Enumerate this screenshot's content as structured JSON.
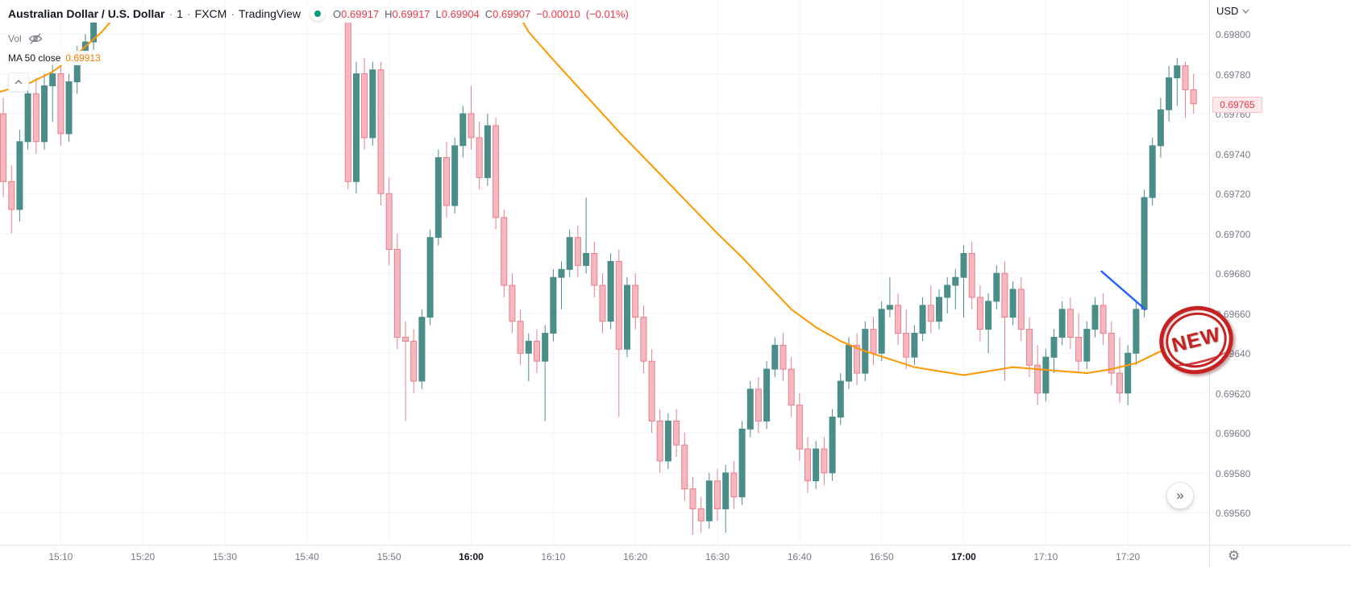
{
  "header": {
    "symbol_title": "Australian Dollar / U.S. Dollar",
    "separator": "·",
    "interval": "1",
    "exchange": "FXCM",
    "platform": "TradingView",
    "ohlc": {
      "o_label": "O",
      "o": "0.69917",
      "h_label": "H",
      "h": "0.69917",
      "l_label": "L",
      "l": "0.69904",
      "c_label": "C",
      "c": "0.69907",
      "change": "−0.00010",
      "change_pct": "(−0.01%)"
    },
    "vol_label": "Vol",
    "ma_label": "MA 50 close",
    "ma_value": "0.69913"
  },
  "price_axis": {
    "currency": "USD",
    "last_price": "0.69765"
  },
  "buttons": {
    "scroll_to_recent": "»",
    "settings_icon": "⚙"
  },
  "colors": {
    "up": "#4a8d89",
    "down_body": "#f5b8c1",
    "down_border": "#ea7f8b",
    "ma": "#ff9800",
    "trendline": "#2962ff",
    "grid": "#f0f3fa",
    "axis_text": "#787b86",
    "red": "#f23645",
    "stamp": "#c62222"
  },
  "chart_data": {
    "type": "candlestick",
    "title": "Australian Dollar / U.S. Dollar, 1, FXCM",
    "time_base": "15:00",
    "visible_range": {
      "time_min": 2.6,
      "time_max": 149.9,
      "price_min": 0.69544,
      "price_max": 0.69817
    },
    "price_ticks": [
      {
        "label": "0.69800",
        "price": 0.698
      },
      {
        "label": "0.69780",
        "price": 0.6978
      },
      {
        "label": "0.69760",
        "price": 0.6976
      },
      {
        "label": "0.69740",
        "price": 0.6974
      },
      {
        "label": "0.69720",
        "price": 0.6972
      },
      {
        "label": "0.69700",
        "price": 0.697
      },
      {
        "label": "0.69680",
        "price": 0.6968
      },
      {
        "label": "0.69660",
        "price": 0.6966
      },
      {
        "label": "0.69640",
        "price": 0.6964
      },
      {
        "label": "0.69620",
        "price": 0.6962
      },
      {
        "label": "0.69600",
        "price": 0.696
      },
      {
        "label": "0.69580",
        "price": 0.6958
      },
      {
        "label": "0.69560",
        "price": 0.6956
      }
    ],
    "time_ticks": [
      {
        "label": "15:10",
        "minute": 10,
        "bold": false
      },
      {
        "label": "15:20",
        "minute": 20,
        "bold": false
      },
      {
        "label": "15:30",
        "minute": 30,
        "bold": false
      },
      {
        "label": "15:40",
        "minute": 40,
        "bold": false
      },
      {
        "label": "15:50",
        "minute": 50,
        "bold": false
      },
      {
        "label": "16:00",
        "minute": 60,
        "bold": true
      },
      {
        "label": "16:10",
        "minute": 70,
        "bold": false
      },
      {
        "label": "16:20",
        "minute": 80,
        "bold": false
      },
      {
        "label": "16:30",
        "minute": 90,
        "bold": false
      },
      {
        "label": "16:40",
        "minute": 100,
        "bold": false
      },
      {
        "label": "16:50",
        "minute": 110,
        "bold": false
      },
      {
        "label": "17:00",
        "minute": 120,
        "bold": true
      },
      {
        "label": "17:10",
        "minute": 130,
        "bold": false
      },
      {
        "label": "17:20",
        "minute": 140,
        "bold": false
      }
    ],
    "candles": [
      [
        3,
        0.6976,
        0.69768,
        0.69718,
        0.69726
      ],
      [
        4,
        0.69726,
        0.69734,
        0.697,
        0.69712
      ],
      [
        5,
        0.69712,
        0.69752,
        0.69706,
        0.69746
      ],
      [
        6,
        0.69746,
        0.69776,
        0.69742,
        0.6977
      ],
      [
        7,
        0.6977,
        0.69778,
        0.6974,
        0.69746
      ],
      [
        8,
        0.69746,
        0.6978,
        0.69742,
        0.69774
      ],
      [
        9,
        0.69774,
        0.69786,
        0.69756,
        0.6978
      ],
      [
        10,
        0.6978,
        0.69784,
        0.69744,
        0.6975
      ],
      [
        11,
        0.6975,
        0.6978,
        0.69746,
        0.69776
      ],
      [
        12,
        0.69776,
        0.69794,
        0.6977,
        0.6979
      ],
      [
        13,
        0.6979,
        0.698,
        0.69786,
        0.69796
      ],
      [
        14,
        0.69796,
        0.69808,
        0.69792,
        0.69806
      ],
      [
        45,
        0.69806,
        0.6981,
        0.69722,
        0.69726
      ],
      [
        46,
        0.69726,
        0.69786,
        0.6972,
        0.6978
      ],
      [
        47,
        0.6978,
        0.69788,
        0.69742,
        0.69748
      ],
      [
        48,
        0.69748,
        0.69786,
        0.69744,
        0.69782
      ],
      [
        49,
        0.69782,
        0.69786,
        0.69714,
        0.6972
      ],
      [
        50,
        0.6972,
        0.69728,
        0.69684,
        0.69692
      ],
      [
        51,
        0.69692,
        0.697,
        0.69642,
        0.69648
      ],
      [
        52,
        0.69648,
        0.69656,
        0.69606,
        0.69646
      ],
      [
        53,
        0.69646,
        0.69652,
        0.6962,
        0.69626
      ],
      [
        54,
        0.69626,
        0.69662,
        0.69622,
        0.69658
      ],
      [
        55,
        0.69658,
        0.69702,
        0.69654,
        0.69698
      ],
      [
        56,
        0.69698,
        0.69742,
        0.69694,
        0.69738
      ],
      [
        57,
        0.69738,
        0.69746,
        0.69708,
        0.69714
      ],
      [
        58,
        0.69714,
        0.69748,
        0.6971,
        0.69744
      ],
      [
        59,
        0.69744,
        0.69764,
        0.69738,
        0.6976
      ],
      [
        60,
        0.6976,
        0.69774,
        0.69742,
        0.69748
      ],
      [
        61,
        0.69748,
        0.69756,
        0.69722,
        0.69728
      ],
      [
        62,
        0.69728,
        0.6976,
        0.69724,
        0.69754
      ],
      [
        63,
        0.69754,
        0.69758,
        0.69702,
        0.69708
      ],
      [
        64,
        0.69708,
        0.69712,
        0.69668,
        0.69674
      ],
      [
        65,
        0.69674,
        0.6968,
        0.6965,
        0.69656
      ],
      [
        66,
        0.69656,
        0.69662,
        0.69634,
        0.6964
      ],
      [
        67,
        0.6964,
        0.6965,
        0.69626,
        0.69646
      ],
      [
        68,
        0.69646,
        0.69652,
        0.6963,
        0.69636
      ],
      [
        69,
        0.69636,
        0.69654,
        0.69606,
        0.6965
      ],
      [
        70,
        0.6965,
        0.69682,
        0.69646,
        0.69678
      ],
      [
        71,
        0.69678,
        0.69686,
        0.69662,
        0.69682
      ],
      [
        72,
        0.69682,
        0.69702,
        0.69678,
        0.69698
      ],
      [
        73,
        0.69698,
        0.69704,
        0.69678,
        0.69684
      ],
      [
        74,
        0.69684,
        0.69718,
        0.6968,
        0.6969
      ],
      [
        75,
        0.6969,
        0.69696,
        0.69668,
        0.69674
      ],
      [
        76,
        0.69674,
        0.6968,
        0.6965,
        0.69656
      ],
      [
        77,
        0.69656,
        0.6969,
        0.69652,
        0.69686
      ],
      [
        78,
        0.69686,
        0.69692,
        0.69608,
        0.69642
      ],
      [
        79,
        0.69642,
        0.69678,
        0.69638,
        0.69674
      ],
      [
        80,
        0.69674,
        0.6968,
        0.69652,
        0.69658
      ],
      [
        81,
        0.69658,
        0.69664,
        0.6963,
        0.69636
      ],
      [
        82,
        0.69636,
        0.69642,
        0.696,
        0.69606
      ],
      [
        83,
        0.69606,
        0.69612,
        0.6958,
        0.69586
      ],
      [
        84,
        0.69586,
        0.6961,
        0.69582,
        0.69606
      ],
      [
        85,
        0.69606,
        0.69612,
        0.69588,
        0.69594
      ],
      [
        86,
        0.69594,
        0.696,
        0.69566,
        0.69572
      ],
      [
        87,
        0.69572,
        0.69578,
        0.69549,
        0.69562
      ],
      [
        88,
        0.69562,
        0.69568,
        0.6955,
        0.69556
      ],
      [
        89,
        0.69556,
        0.6958,
        0.69552,
        0.69576
      ],
      [
        90,
        0.69576,
        0.69582,
        0.69556,
        0.69562
      ],
      [
        91,
        0.69562,
        0.69584,
        0.6955,
        0.6958
      ],
      [
        92,
        0.6958,
        0.69586,
        0.69562,
        0.69568
      ],
      [
        93,
        0.69568,
        0.69606,
        0.69564,
        0.69602
      ],
      [
        94,
        0.69602,
        0.69626,
        0.69598,
        0.69622
      ],
      [
        95,
        0.69622,
        0.69628,
        0.696,
        0.69606
      ],
      [
        96,
        0.69606,
        0.69636,
        0.69602,
        0.69632
      ],
      [
        97,
        0.69632,
        0.69648,
        0.69628,
        0.69644
      ],
      [
        98,
        0.69644,
        0.6965,
        0.69626,
        0.69632
      ],
      [
        99,
        0.69632,
        0.69638,
        0.69608,
        0.69614
      ],
      [
        100,
        0.69614,
        0.6962,
        0.69586,
        0.69592
      ],
      [
        101,
        0.69592,
        0.69598,
        0.6957,
        0.69576
      ],
      [
        102,
        0.69576,
        0.69596,
        0.69572,
        0.69592
      ],
      [
        103,
        0.69592,
        0.69598,
        0.69574,
        0.6958
      ],
      [
        104,
        0.6958,
        0.69612,
        0.69576,
        0.69608
      ],
      [
        105,
        0.69608,
        0.6963,
        0.69604,
        0.69626
      ],
      [
        106,
        0.69626,
        0.69648,
        0.69622,
        0.69644
      ],
      [
        107,
        0.69644,
        0.6965,
        0.69624,
        0.6963
      ],
      [
        108,
        0.6963,
        0.69656,
        0.69626,
        0.69652
      ],
      [
        109,
        0.69652,
        0.69658,
        0.69634,
        0.6964
      ],
      [
        110,
        0.6964,
        0.69666,
        0.69636,
        0.69662
      ],
      [
        111,
        0.69662,
        0.69678,
        0.69658,
        0.69664
      ],
      [
        112,
        0.69664,
        0.6967,
        0.69644,
        0.6965
      ],
      [
        113,
        0.6965,
        0.69662,
        0.69632,
        0.69638
      ],
      [
        114,
        0.69638,
        0.69654,
        0.69634,
        0.6965
      ],
      [
        115,
        0.6965,
        0.69668,
        0.69646,
        0.69664
      ],
      [
        116,
        0.69664,
        0.69674,
        0.6965,
        0.69656
      ],
      [
        117,
        0.69656,
        0.69672,
        0.69652,
        0.69668
      ],
      [
        118,
        0.69668,
        0.69678,
        0.6966,
        0.69674
      ],
      [
        119,
        0.69674,
        0.69682,
        0.69662,
        0.69678
      ],
      [
        120,
        0.69678,
        0.69694,
        0.69658,
        0.6969
      ],
      [
        121,
        0.6969,
        0.69696,
        0.69662,
        0.69668
      ],
      [
        122,
        0.69668,
        0.69674,
        0.69646,
        0.69652
      ],
      [
        123,
        0.69652,
        0.6967,
        0.6964,
        0.69666
      ],
      [
        124,
        0.69666,
        0.69684,
        0.69662,
        0.6968
      ],
      [
        125,
        0.6968,
        0.69686,
        0.69626,
        0.69658
      ],
      [
        126,
        0.69658,
        0.69676,
        0.69654,
        0.69672
      ],
      [
        127,
        0.69672,
        0.69678,
        0.69646,
        0.69652
      ],
      [
        128,
        0.69652,
        0.69658,
        0.69628,
        0.69634
      ],
      [
        129,
        0.69634,
        0.69644,
        0.69614,
        0.6962
      ],
      [
        130,
        0.6962,
        0.69642,
        0.69616,
        0.69638
      ],
      [
        131,
        0.69638,
        0.69652,
        0.6963,
        0.69648
      ],
      [
        132,
        0.69648,
        0.69666,
        0.69644,
        0.69662
      ],
      [
        133,
        0.69662,
        0.69668,
        0.69642,
        0.69648
      ],
      [
        134,
        0.69648,
        0.6966,
        0.6963,
        0.69636
      ],
      [
        135,
        0.69636,
        0.69656,
        0.69632,
        0.69652
      ],
      [
        136,
        0.69652,
        0.69668,
        0.69648,
        0.69664
      ],
      [
        137,
        0.69664,
        0.6967,
        0.69644,
        0.6965
      ],
      [
        138,
        0.6965,
        0.69656,
        0.69624,
        0.6963
      ],
      [
        139,
        0.6963,
        0.69648,
        0.69615,
        0.6962
      ],
      [
        140,
        0.6962,
        0.69644,
        0.69614,
        0.6964
      ],
      [
        141,
        0.6964,
        0.69666,
        0.69634,
        0.69662
      ],
      [
        142,
        0.69662,
        0.69722,
        0.69658,
        0.69718
      ],
      [
        143,
        0.69718,
        0.69748,
        0.69714,
        0.69744
      ],
      [
        144,
        0.69744,
        0.69768,
        0.69738,
        0.69762
      ],
      [
        145,
        0.69762,
        0.69784,
        0.69756,
        0.69778
      ],
      [
        146,
        0.69778,
        0.69788,
        0.69764,
        0.69784
      ],
      [
        147,
        0.69784,
        0.69786,
        0.69758,
        0.69772
      ],
      [
        148,
        0.69772,
        0.6978,
        0.6976,
        0.69765
      ]
    ],
    "ma50": {
      "name": "MA 50 close",
      "segments": [
        [
          [
            2.6,
            0.69771
          ],
          [
            6,
            0.69775
          ],
          [
            9,
            0.69781
          ],
          [
            12,
            0.6979
          ],
          [
            15,
            0.69801
          ],
          [
            17.5,
            0.69813
          ]
        ],
        [
          [
            65.3,
            0.69813
          ],
          [
            67,
            0.69801
          ],
          [
            70,
            0.69787
          ],
          [
            74,
            0.69769
          ],
          [
            78,
            0.69751
          ],
          [
            82,
            0.69734
          ],
          [
            86,
            0.69717
          ],
          [
            90,
            0.697
          ],
          [
            93,
            0.69688
          ],
          [
            96,
            0.69675
          ],
          [
            99,
            0.69662
          ],
          [
            102,
            0.69653
          ],
          [
            105,
            0.69646
          ],
          [
            108,
            0.69641
          ],
          [
            111,
            0.69637
          ],
          [
            114,
            0.69633
          ],
          [
            117,
            0.69631
          ],
          [
            120,
            0.69629
          ],
          [
            123,
            0.69631
          ],
          [
            126,
            0.69633
          ],
          [
            129,
            0.69632
          ],
          [
            132,
            0.69631
          ],
          [
            135,
            0.6963
          ],
          [
            138,
            0.69632
          ],
          [
            141,
            0.69635
          ],
          [
            144,
            0.69641
          ],
          [
            146,
            0.69645
          ],
          [
            148.5,
            0.6965
          ]
        ]
      ]
    },
    "annotations": {
      "trendline": {
        "t1": 136.8,
        "p1": 0.69681,
        "t2": 142.1,
        "p2": 0.69662
      },
      "stamp_text": "NEW"
    },
    "last_price": 0.69765
  }
}
